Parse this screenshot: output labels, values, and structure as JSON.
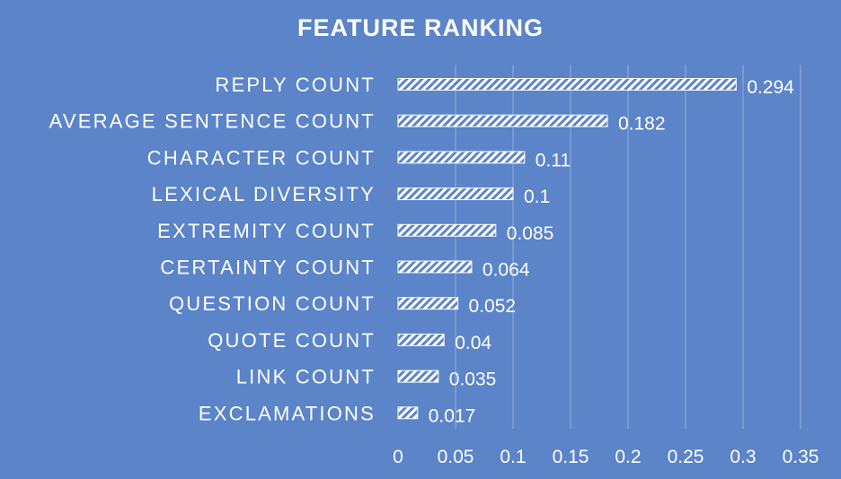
{
  "chart_data": {
    "type": "bar",
    "orientation": "horizontal",
    "title": "FEATURE RANKING",
    "categories": [
      "REPLY COUNT",
      "AVERAGE SENTENCE COUNT",
      "CHARACTER COUNT",
      "LEXICAL DIVERSITY",
      "EXTREMITY COUNT",
      "CERTAINTY COUNT",
      "QUESTION COUNT",
      "QUOTE COUNT",
      "LINK COUNT",
      "EXCLAMATIONS"
    ],
    "values": [
      0.294,
      0.182,
      0.11,
      0.1,
      0.085,
      0.064,
      0.052,
      0.04,
      0.035,
      0.017
    ],
    "data_labels": [
      "0.294",
      "0.182",
      "0.11",
      "0.1",
      "0.085",
      "0.064",
      "0.052",
      "0.04",
      "0.035",
      "0.017"
    ],
    "xticks": [
      "0",
      "0.05",
      "0.1",
      "0.15",
      "0.2",
      "0.25",
      "0.3",
      "0.35"
    ],
    "xlim": [
      0,
      0.35
    ],
    "xlabel": "",
    "ylabel": "",
    "grid": "vertical",
    "legend": "none",
    "colors": {
      "background": "#5b84c9",
      "bar_pattern": "white diagonal hatch",
      "text": "#ffffff"
    }
  }
}
